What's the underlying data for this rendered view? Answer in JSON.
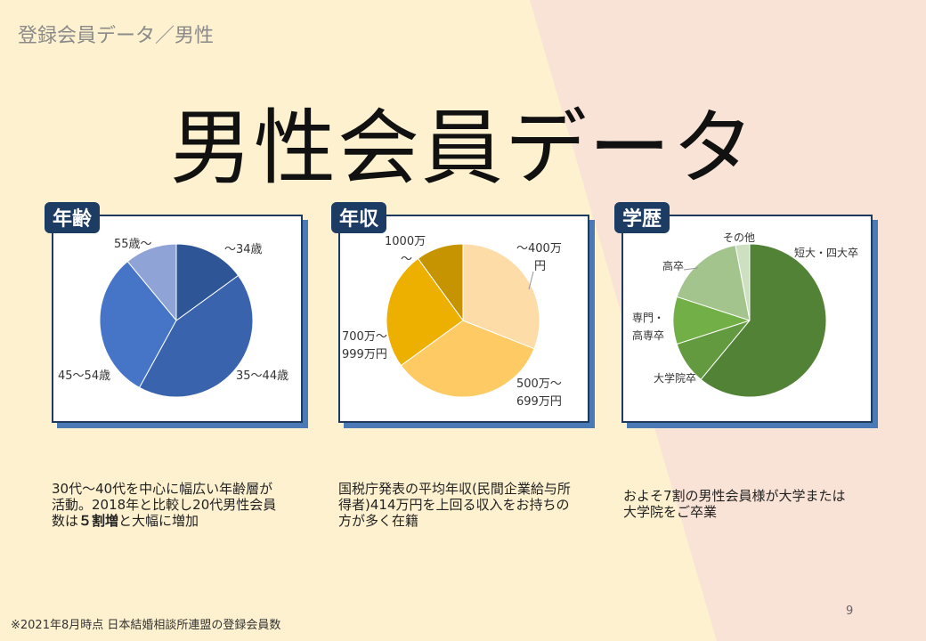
{
  "header": {
    "breadcrumb": "登録会員データ／男性",
    "title": "男性会員データ"
  },
  "colors": {
    "left_background": "#fdf1cf",
    "right_background": "#f9e2d6",
    "panel_border": "#1f3a5f",
    "tag_background": "#1d3c63"
  },
  "chart_data": [
    {
      "type": "pie",
      "tag": "年齢",
      "categories": [
        "～34歳",
        "35～44歳",
        "45～54歳",
        "55歳～"
      ],
      "values": [
        15,
        43,
        31,
        11
      ],
      "colors": [
        "#2e5596",
        "#3963ad",
        "#4675c8",
        "#8fa3d6"
      ]
    },
    {
      "type": "pie",
      "tag": "年収",
      "categories": [
        "～400万円",
        "500万～699万円",
        "700万～999万円",
        "1000万～"
      ],
      "values": [
        31,
        34,
        25,
        10
      ],
      "colors": [
        "#fddca8",
        "#fdca64",
        "#edb000",
        "#c59400"
      ]
    },
    {
      "type": "pie",
      "tag": "学歴",
      "categories": [
        "短大・四大卒",
        "大学院卒",
        "専門・高専卒",
        "高卒",
        "その他"
      ],
      "values": [
        61,
        9,
        10,
        17,
        3
      ],
      "colors": [
        "#528236",
        "#639a3f",
        "#73af47",
        "#a3c48d",
        "#cde0c2"
      ]
    }
  ],
  "labels": {
    "age": [
      "～34歳",
      "35～44歳",
      "45～54歳",
      "55歳～"
    ],
    "income": [
      "～400万",
      "円",
      "500万～",
      "699万円",
      "700万～",
      "999万円",
      "1000万",
      "～"
    ],
    "education": [
      "短大・四大卒",
      "大学院卒",
      "専門・",
      "高専卒",
      "高卒",
      "その他"
    ]
  },
  "descriptions": {
    "age": {
      "line1": "30代～40代を中心に幅広い年齢層が",
      "line2": "活動。2018年と比較し20代男性会員",
      "line3a": "数は",
      "line3b": "５割増",
      "line3c": "と大幅に増加"
    },
    "income": {
      "line1": "国税庁発表の平均年収(民間企業給与所",
      "line2": "得者)414万円を上回る収入をお持ちの",
      "line3": "方が多く在籍"
    },
    "education": {
      "line1": "およそ7割の男性会員様が大学または",
      "line2": "大学院をご卒業"
    }
  },
  "footer": {
    "footnote": "※2021年8月時点 日本結婚相談所連盟の登録会員数",
    "page_number": "9"
  }
}
